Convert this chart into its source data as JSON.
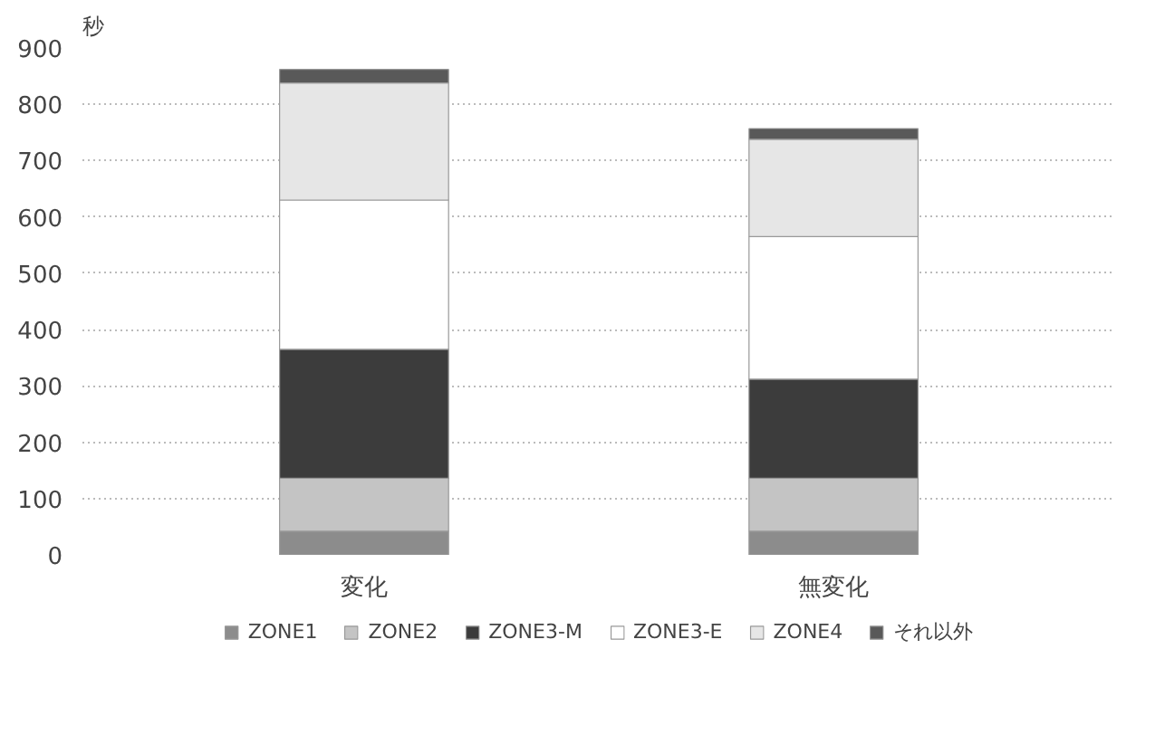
{
  "chart_data": {
    "type": "bar",
    "stacked": true,
    "ylabel": "秒",
    "categories": [
      "変化",
      "無変化"
    ],
    "series": [
      {
        "name": "ZONE1",
        "color": "#8c8c8c",
        "values": [
          42,
          42
        ]
      },
      {
        "name": "ZONE2",
        "color": "#c4c4c4",
        "values": [
          94,
          94
        ]
      },
      {
        "name": "ZONE3-M",
        "color": "#3c3c3c",
        "values": [
          229,
          176
        ]
      },
      {
        "name": "ZONE3-E",
        "color": "#ffffff",
        "values": [
          265,
          253
        ]
      },
      {
        "name": "ZONE4",
        "color": "#e6e6e6",
        "values": [
          208,
          173
        ]
      },
      {
        "name": "それ以外",
        "color": "#595959",
        "values": [
          24,
          19
        ]
      }
    ],
    "ylim": [
      0,
      900
    ],
    "yticks": [
      0,
      100,
      200,
      300,
      400,
      500,
      600,
      700,
      800,
      900
    ],
    "grid": "y",
    "legend": "bottom"
  }
}
